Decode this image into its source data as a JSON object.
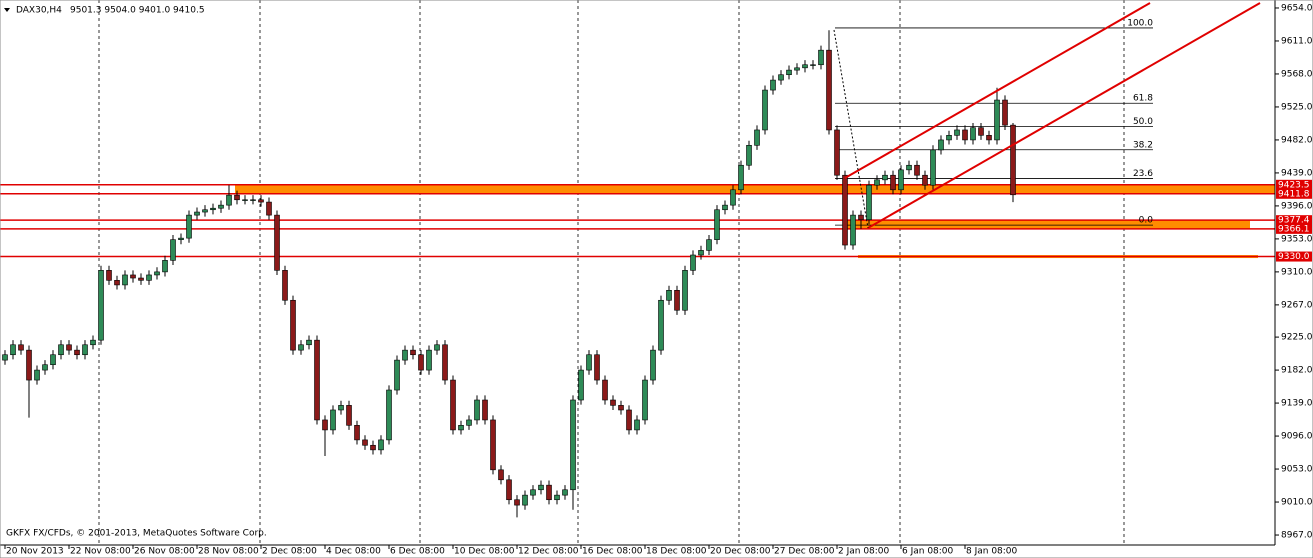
{
  "chart_data": {
    "type": "candlestick",
    "symbol": "DAX30,H4",
    "info": "9501.3 9504.0 9401.0 9410.5",
    "copyright": "GKFX FX/CFDs, © 2001-2013, MetaQuotes Software Corp.",
    "categories": [
      "20 Nov 2013",
      null,
      null,
      null,
      null,
      null,
      null,
      null,
      "22 Nov 08:00",
      null,
      null,
      null,
      null,
      null,
      null,
      null,
      "26 Nov 08:00",
      null,
      null,
      null,
      null,
      null,
      null,
      null,
      "28 Nov 08:00",
      null,
      null,
      null,
      null,
      null,
      null,
      null,
      "2 Dec 08:00",
      null,
      null,
      null,
      null,
      null,
      null,
      null,
      "4 Dec 08:00",
      null,
      null,
      null,
      null,
      null,
      null,
      null,
      "6 Dec 08:00",
      null,
      null,
      null,
      null,
      null,
      null,
      null,
      "10 Dec 08:00",
      null,
      null,
      null,
      null,
      null,
      null,
      null,
      "12 Dec 08:00",
      null,
      null,
      null,
      null,
      null,
      null,
      null,
      "16 Dec 08:00",
      null,
      null,
      null,
      null,
      null,
      null,
      null,
      "18 Dec 08:00",
      null,
      null,
      null,
      null,
      null,
      null,
      null,
      "20 Dec 08:00",
      null,
      null,
      null,
      null,
      null,
      null,
      null,
      "27 Dec 08:00",
      null,
      null,
      null,
      null,
      null,
      null,
      null,
      "2 Jan 08:00",
      null,
      null,
      null,
      null,
      null,
      null,
      null,
      "6 Jan 08:00",
      null,
      null,
      null,
      null,
      null,
      null,
      null,
      "8 Jan 08:00",
      null,
      null,
      null,
      null,
      null,
      null
    ],
    "open": [
      9195,
      9202,
      9215,
      9208,
      9169,
      9182,
      9189,
      9202,
      9215,
      9208,
      9202,
      9215,
      9221,
      9312,
      9299,
      9293,
      9306,
      9302,
      9299,
      9306,
      9310,
      9325,
      9352,
      9354,
      9384,
      9388,
      9391,
      9393,
      9397,
      9410,
      9404,
      9404,
      9404,
      9401,
      9384,
      9312,
      9273,
      9208,
      9215,
      9221,
      9117,
      9104,
      9130,
      9136,
      9110,
      9091,
      9084,
      9078,
      9091,
      9156,
      9195,
      9208,
      9202,
      9182,
      9208,
      9215,
      9169,
      9104,
      9110,
      9117,
      9143,
      9117,
      9052,
      9039,
      9013,
      9006,
      9019,
      9026,
      9032,
      9013,
      9019,
      9026,
      9143,
      9182,
      9202,
      9169,
      9143,
      9136,
      9130,
      9104,
      9117,
      9169,
      9208,
      9273,
      9286,
      9260,
      9312,
      9332,
      9338,
      9352,
      9391,
      9397,
      9417,
      9449,
      9475,
      9495,
      9547,
      9560,
      9567,
      9573,
      9576,
      9580,
      9580,
      9599,
      9495,
      9436,
      9345,
      9384,
      9378,
      9423,
      9430,
      9436,
      9417,
      9443,
      9449,
      9436,
      9423,
      9469,
      9482,
      9488,
      9495,
      9482,
      9498,
      9488,
      9482,
      9534,
      9501.3
    ],
    "high": [
      9208,
      9221,
      9221,
      9214,
      9188,
      9195,
      9208,
      9221,
      9221,
      9214,
      9221,
      9227,
      9318,
      9318,
      9305,
      9312,
      9312,
      9308,
      9312,
      9316,
      9331,
      9358,
      9360,
      9390,
      9394,
      9397,
      9399,
      9403,
      9423,
      9416,
      9410,
      9410,
      9410,
      9407,
      9390,
      9318,
      9279,
      9221,
      9227,
      9227,
      9123,
      9136,
      9142,
      9142,
      9116,
      9097,
      9090,
      9097,
      9162,
      9201,
      9214,
      9214,
      9208,
      9214,
      9221,
      9221,
      9175,
      9116,
      9123,
      9149,
      9149,
      9123,
      9058,
      9045,
      9019,
      9025,
      9032,
      9038,
      9038,
      9025,
      9032,
      9149,
      9188,
      9208,
      9208,
      9175,
      9149,
      9142,
      9136,
      9123,
      9175,
      9214,
      9279,
      9292,
      9292,
      9318,
      9338,
      9344,
      9358,
      9397,
      9403,
      9423,
      9455,
      9481,
      9501,
      9553,
      9566,
      9573,
      9579,
      9582,
      9586,
      9586,
      9605,
      9625,
      9501,
      9442,
      9390,
      9390,
      9429,
      9436,
      9442,
      9442,
      9449,
      9455,
      9455,
      9442,
      9475,
      9488,
      9494,
      9501,
      9501,
      9504,
      9504,
      9494,
      9550,
      9540,
      9504
    ],
    "low": [
      9189,
      9196,
      9202,
      9120,
      9163,
      9176,
      9183,
      9196,
      9202,
      9196,
      9196,
      9209,
      9215,
      9293,
      9287,
      9287,
      9296,
      9293,
      9293,
      9300,
      9304,
      9319,
      9346,
      9348,
      9378,
      9382,
      9385,
      9387,
      9391,
      9398,
      9398,
      9398,
      9395,
      9378,
      9306,
      9267,
      9202,
      9202,
      9209,
      9111,
      9070,
      9098,
      9124,
      9104,
      9085,
      9078,
      9072,
      9072,
      9085,
      9150,
      9189,
      9196,
      9176,
      9176,
      9202,
      9163,
      9098,
      9098,
      9104,
      9111,
      9111,
      9046,
      9033,
      9007,
      8990,
      9000,
      9013,
      9020,
      9007,
      9007,
      9013,
      9000,
      9137,
      9176,
      9163,
      9137,
      9130,
      9124,
      9098,
      9098,
      9111,
      9163,
      9202,
      9267,
      9254,
      9254,
      9306,
      9326,
      9332,
      9346,
      9385,
      9391,
      9411,
      9443,
      9469,
      9489,
      9541,
      9554,
      9561,
      9567,
      9570,
      9574,
      9574,
      9489,
      9430,
      9339,
      9339,
      9366,
      9372,
      9417,
      9424,
      9411,
      9411,
      9437,
      9430,
      9417,
      9417,
      9463,
      9476,
      9482,
      9476,
      9476,
      9482,
      9476,
      9476,
      9495,
      9401
    ],
    "close": [
      9202,
      9215,
      9208,
      9169,
      9182,
      9189,
      9202,
      9215,
      9208,
      9202,
      9215,
      9221,
      9312,
      9299,
      9293,
      9306,
      9302,
      9299,
      9306,
      9310,
      9325,
      9352,
      9354,
      9384,
      9388,
      9391,
      9393,
      9397,
      9410,
      9404,
      9404,
      9404,
      9401,
      9384,
      9312,
      9273,
      9208,
      9215,
      9221,
      9117,
      9104,
      9130,
      9136,
      9110,
      9091,
      9084,
      9078,
      9091,
      9156,
      9195,
      9208,
      9202,
      9182,
      9208,
      9215,
      9169,
      9104,
      9110,
      9117,
      9143,
      9117,
      9052,
      9039,
      9013,
      9006,
      9019,
      9026,
      9032,
      9013,
      9019,
      9026,
      9143,
      9182,
      9202,
      9169,
      9143,
      9136,
      9130,
      9104,
      9117,
      9169,
      9208,
      9273,
      9286,
      9260,
      9312,
      9332,
      9338,
      9352,
      9391,
      9397,
      9417,
      9449,
      9475,
      9495,
      9547,
      9560,
      9567,
      9573,
      9576,
      9580,
      9580,
      9599,
      9495,
      9436,
      9345,
      9384,
      9378,
      9423,
      9430,
      9436,
      9417,
      9443,
      9449,
      9436,
      9423,
      9469,
      9482,
      9488,
      9495,
      9482,
      9498,
      9488,
      9482,
      9534,
      9501.3,
      9410.5
    ],
    "up_color": "#2e8b57",
    "down_color": "#8b1a1a",
    "ylim": [
      8954,
      9664.4
    ],
    "yticks": [
      {
        "value": 9654,
        "label": "9654.0"
      },
      {
        "value": 9611,
        "label": "9611.0"
      },
      {
        "value": 9568,
        "label": "9568.0"
      },
      {
        "value": 9525,
        "label": "9525.0"
      },
      {
        "value": 9482,
        "label": "9482.0"
      },
      {
        "value": 9439,
        "label": "9439.0"
      },
      {
        "value": 9396,
        "label": "9396.0"
      },
      {
        "value": 9353,
        "label": "9353.0"
      },
      {
        "value": 9310,
        "label": "9310.0"
      },
      {
        "value": 9267,
        "label": "9267.0"
      },
      {
        "value": 9225,
        "label": "9225.0"
      },
      {
        "value": 9182,
        "label": "9182.0"
      },
      {
        "value": 9139,
        "label": "9139.0"
      },
      {
        "value": 9096,
        "label": "9096.0"
      },
      {
        "value": 9053,
        "label": "9053.0"
      },
      {
        "value": 9010,
        "label": "9010.0"
      },
      {
        "value": 8967,
        "label": "8967.0"
      }
    ],
    "levels": [
      9423.5,
      9411.8,
      9377.4,
      9366.1,
      {
        "value": 9330,
        "label": "9330.0"
      }
    ],
    "level_color": "#e00000",
    "zone_color": "#ff8c00",
    "fibonacci": {
      "high": 9628,
      "low": 9371,
      "levels": [
        {
          "value": 100,
          "label": "100.0"
        },
        61.8,
        {
          "value": 50,
          "label": "50.0"
        },
        38.2,
        23.6,
        {
          "value": 0,
          "label": "0.0"
        }
      ]
    }
  }
}
